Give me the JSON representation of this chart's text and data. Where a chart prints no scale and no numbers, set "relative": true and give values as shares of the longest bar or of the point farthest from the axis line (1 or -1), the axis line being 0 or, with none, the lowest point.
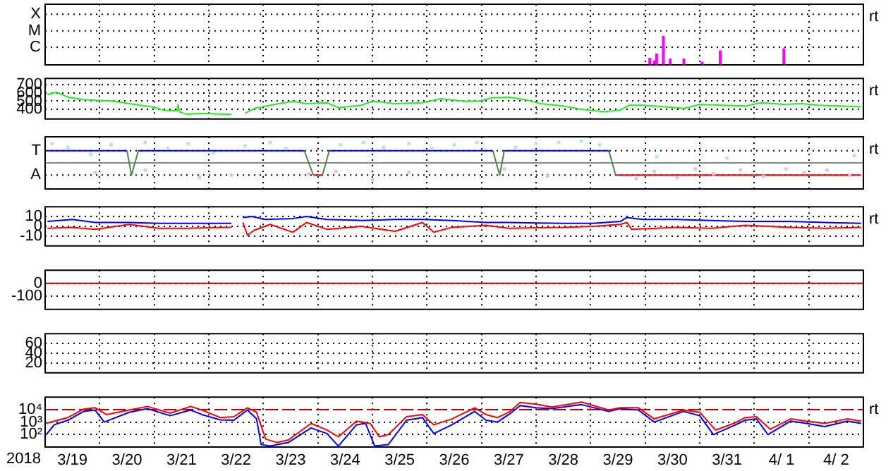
{
  "chart_data": [
    {
      "type": "bar",
      "relative": true,
      "xlim": [
        "2018-03-19",
        "2018-04-03"
      ],
      "grid": "x",
      "tick_labels": false,
      "legend": false,
      "xticks": [
        {
          "value": "2018-03-20",
          "label": null
        },
        {
          "value": "2018-03-21",
          "label": null
        },
        {
          "value": "2018-03-22",
          "label": null
        },
        {
          "value": "2018-03-23",
          "label": null
        },
        {
          "value": "2018-03-24",
          "label": null
        },
        {
          "value": "2018-03-25",
          "label": null
        },
        {
          "value": "2018-03-26",
          "label": null
        },
        {
          "value": "2018-03-27",
          "label": null
        },
        {
          "value": "2018-03-28",
          "label": null
        },
        {
          "value": "2018-03-29",
          "label": null
        },
        {
          "value": "2018-03-30",
          "label": null
        },
        {
          "value": "2018-03-31",
          "label": null
        },
        {
          "value": "2018-04-01",
          "label": null
        },
        {
          "value": "2018-04-02",
          "label": null
        }
      ],
      "ref_lines": [
        {
          "axis": "y",
          "value": 1.74,
          "label": "X",
          "color": "#000000",
          "line_style": "dotted"
        },
        {
          "axis": "y",
          "value": 1.17,
          "label": "M",
          "color": "#000000",
          "line_style": "dotted"
        },
        {
          "axis": "y",
          "value": 0.61,
          "label": "C",
          "color": "#000000",
          "line_style": "dotted"
        }
      ],
      "x": [
        "2018-03-30T02:00",
        "2018-03-30T04:00",
        "2018-03-30T05:00",
        "2018-03-30T08:00",
        "2018-03-30T11:00",
        "2018-03-30T17:00",
        "2018-03-31T01:00",
        "2018-03-31T09:00",
        "2018-03-31T16:00",
        "2018-04-01T13:00"
      ],
      "values": [
        0.24,
        0.15,
        0.39,
        1,
        0.22,
        0.22,
        0.11,
        0.5,
        null,
        0.57
      ],
      "color": "#ff00ff",
      "annotations": [
        "rt"
      ]
    },
    {
      "type": "line",
      "xlim": [
        "2018-03-19",
        "2018-04-03"
      ],
      "ylim": [
        280,
        780
      ],
      "yticks": [
        400,
        500,
        600,
        700
      ],
      "grid": true,
      "tick_labels": "y",
      "legend": false,
      "xticks": [
        {
          "value": "2018-03-20",
          "label": null
        },
        {
          "value": "2018-03-21",
          "label": null
        },
        {
          "value": "2018-03-22",
          "label": null
        },
        {
          "value": "2018-03-23",
          "label": null
        },
        {
          "value": "2018-03-24",
          "label": null
        },
        {
          "value": "2018-03-25",
          "label": null
        },
        {
          "value": "2018-03-26",
          "label": null
        },
        {
          "value": "2018-03-27",
          "label": null
        },
        {
          "value": "2018-03-28",
          "label": null
        },
        {
          "value": "2018-03-29",
          "label": null
        },
        {
          "value": "2018-03-30",
          "label": null
        },
        {
          "value": "2018-03-31",
          "label": null
        },
        {
          "value": "2018-04-01",
          "label": null
        },
        {
          "value": "2018-04-02",
          "label": null
        }
      ],
      "series": [
        {
          "color": "#22ee22",
          "x": [
            "2018-03-19T01:00",
            "2018-03-19T05:00",
            "2018-03-19T10:00",
            "2018-03-19T17:00",
            "2018-03-20T06:00",
            "2018-03-20T18:00",
            "2018-03-20T23:00",
            "2018-03-21T04:00",
            "2018-03-21T10:00",
            "2018-03-21T10:30",
            "2018-03-21T11:00",
            "2018-03-21T14:00",
            "2018-03-21T21:00",
            "2018-03-22T07:00",
            "2018-03-22T10:00",
            "2018-03-22T13:00",
            "2018-03-22T16:00",
            "2018-03-22T20:00",
            "2018-03-23T03:00",
            "2018-03-23T13:00",
            "2018-03-23T19:00",
            "2018-03-24T04:00",
            "2018-03-24T09:00",
            "2018-03-24T19:00",
            "2018-03-25T00:00",
            "2018-03-25T10:00",
            "2018-03-25T22:00",
            "2018-03-26T06:00",
            "2018-03-26T16:00",
            "2018-03-26T23:00",
            "2018-03-27T04:00",
            "2018-03-27T12:00",
            "2018-03-27T19:00",
            "2018-03-28T02:00",
            "2018-03-28T12:00",
            "2018-03-28T20:00",
            "2018-03-29T06:00",
            "2018-03-29T13:00",
            "2018-03-29T17:00",
            "2018-03-29T23:00",
            "2018-03-30T09:00",
            "2018-03-30T17:00",
            "2018-03-31T00:00",
            "2018-03-31T10:00",
            "2018-03-31T20:00",
            "2018-04-01T03:00",
            "2018-04-01T13:00",
            "2018-04-01T21:00",
            "2018-04-02T04:00",
            "2018-04-02T14:00",
            "2018-04-02T23:00"
          ],
          "values": [
            580,
            610,
            550,
            520,
            500,
            450,
            430,
            390,
            380,
            460,
            370,
            340,
            350,
            340,
            340,
            null,
            350,
            410,
            450,
            500,
            470,
            480,
            420,
            450,
            500,
            470,
            480,
            530,
            500,
            500,
            540,
            550,
            520,
            470,
            440,
            400,
            370,
            390,
            450,
            450,
            430,
            410,
            460,
            450,
            440,
            480,
            460,
            470,
            450,
            440,
            430
          ]
        }
      ],
      "annotations": [
        "rt"
      ]
    },
    {
      "type": "line",
      "relative": true,
      "xlim": [
        "2018-03-19",
        "2018-04-03"
      ],
      "grid": "x",
      "tick_labels": false,
      "legend": false,
      "xticks": [
        {
          "value": "2018-03-20",
          "label": null
        },
        {
          "value": "2018-03-21",
          "label": null
        },
        {
          "value": "2018-03-22",
          "label": null
        },
        {
          "value": "2018-03-23",
          "label": null
        },
        {
          "value": "2018-03-24",
          "label": null
        },
        {
          "value": "2018-03-25",
          "label": null
        },
        {
          "value": "2018-03-26",
          "label": null
        },
        {
          "value": "2018-03-27",
          "label": null
        },
        {
          "value": "2018-03-28",
          "label": null
        },
        {
          "value": "2018-03-29",
          "label": null
        },
        {
          "value": "2018-03-30",
          "label": null
        },
        {
          "value": "2018-03-31",
          "label": null
        },
        {
          "value": "2018-04-01",
          "label": null
        },
        {
          "value": "2018-04-02",
          "label": null
        }
      ],
      "ref_lines": [
        {
          "axis": "y",
          "value": 0.56,
          "label": "T",
          "color": "#000000",
          "line_style": "dotted"
        },
        {
          "axis": "y",
          "value": 0,
          "color": "#888888"
        },
        {
          "axis": "y",
          "value": -0.56,
          "label": "A",
          "color": "#000000",
          "line_style": "dotted"
        }
      ],
      "series": [
        {
          "type": "scatter",
          "marker": "square",
          "color": "#a8e4f4",
          "x": [
            "2018-03-19T03:00",
            "2018-03-19T10:00",
            "2018-03-19T20:00",
            "2018-03-20T05:00",
            "2018-03-20T20:00",
            "2018-03-21T06:00",
            "2018-03-21T15:00",
            "2018-03-22T02:00",
            "2018-03-22T16:00",
            "2018-03-23T03:00",
            "2018-03-23T10:00",
            "2018-03-24T10:00",
            "2018-03-24T20:00",
            "2018-03-25T05:00",
            "2018-03-25T16:00",
            "2018-03-26T02:00",
            "2018-03-26T12:00",
            "2018-03-26T22:00",
            "2018-03-27T15:00",
            "2018-03-28T00:00",
            "2018-03-28T10:00",
            "2018-03-28T20:00",
            "2018-03-29T04:00",
            "2018-03-30T05:00",
            "2018-03-31T12:00",
            "2018-04-02T20:00"
          ],
          "values": [
            0.89,
            0.72,
            0.39,
            0.83,
            0.94,
            0.67,
            0.89,
            0.44,
            0.78,
            0.94,
            0.67,
            0.83,
            0.94,
            0.72,
            0.89,
            0.67,
            0.83,
            0.94,
            0.72,
            0.89,
            0.94,
            1,
            0.83,
            0.28,
            0.22,
            0.33
          ]
        },
        {
          "type": "scatter",
          "marker": "square",
          "color": "#f4b4f4",
          "x": [
            "2018-03-19T22:00",
            "2018-03-20T20:00",
            "2018-03-21T20:00",
            "2018-03-22T10:00",
            "2018-03-23T20:00",
            "2018-03-24T08:00",
            "2018-03-25T00:00",
            "2018-03-25T16:00",
            "2018-03-27T10:00",
            "2018-03-28T05:00",
            "2018-03-29T20:00",
            "2018-03-30T04:00",
            "2018-03-30T14:00",
            "2018-03-30T22:00",
            "2018-03-31T06:00",
            "2018-03-31T18:00",
            "2018-04-01T04:00",
            "2018-04-01T14:00",
            "2018-04-01T22:00",
            "2018-04-02T08:00",
            "2018-04-02T18:00"
          ],
          "values": [
            -0.44,
            -0.33,
            -0.67,
            -0.56,
            -0.5,
            -0.39,
            -0.78,
            -0.44,
            -0.28,
            -0.61,
            -0.72,
            -0.39,
            -0.67,
            -0.28,
            -0.5,
            -0.33,
            -0.61,
            -0.28,
            -0.44,
            -0.33,
            -0.56
          ]
        },
        {
          "type": "line",
          "color": "#0000ff",
          "x": [
            "2018-03-19T00:00",
            "2018-03-20T12:00",
            "2018-03-20T14:00",
            "2018-03-20T17:00",
            "2018-03-23T18:00",
            "2018-03-24T00:00",
            "2018-03-24T05:00",
            "2018-03-27T05:00",
            "2018-03-27T08:00",
            "2018-03-27T10:00",
            "2018-03-29T08:00"
          ],
          "values": [
            0.56,
            0.56,
            null,
            0.56,
            0.56,
            null,
            0.56,
            0.56,
            null,
            0.56,
            0.56
          ]
        },
        {
          "type": "line",
          "color": "#4a8a4a",
          "x": [
            "2018-03-20T12:00",
            "2018-03-20T14:00",
            "2018-03-20T17:00",
            "2018-03-22T00:00",
            "2018-03-23T18:00",
            "2018-03-23T22:00",
            "2018-03-24T00:00",
            "2018-03-24T02:00",
            "2018-03-24T05:00",
            "2018-03-26T00:00",
            "2018-03-27T05:00",
            "2018-03-27T08:00",
            "2018-03-27T10:00",
            "2018-03-28T00:00",
            "2018-03-29T08:00",
            "2018-03-29T11:00"
          ],
          "values": [
            0.56,
            -0.56,
            0.56,
            null,
            0.56,
            -0.56,
            null,
            -0.56,
            0.56,
            null,
            0.56,
            -0.56,
            0.56,
            null,
            0.56,
            -0.56
          ]
        },
        {
          "type": "line",
          "color": "#ff0000",
          "x": [
            "2018-03-23T22:00",
            "2018-03-24T02:00",
            "2018-03-26T00:00",
            "2018-03-29T11:00",
            "2018-04-02T23:00"
          ],
          "values": [
            -0.56,
            -0.56,
            null,
            -0.56,
            -0.56
          ]
        }
      ],
      "annotations": [
        "rt"
      ]
    },
    {
      "type": "line",
      "xlim": [
        "2018-03-19",
        "2018-04-03"
      ],
      "ylim": [
        -20,
        20
      ],
      "yticks": [
        10,
        0,
        -10
      ],
      "grid": true,
      "tick_labels": "y",
      "legend": false,
      "xticks": [
        {
          "value": "2018-03-20",
          "label": null
        },
        {
          "value": "2018-03-21",
          "label": null
        },
        {
          "value": "2018-03-22",
          "label": null
        },
        {
          "value": "2018-03-23",
          "label": null
        },
        {
          "value": "2018-03-24",
          "label": null
        },
        {
          "value": "2018-03-25",
          "label": null
        },
        {
          "value": "2018-03-26",
          "label": null
        },
        {
          "value": "2018-03-27",
          "label": null
        },
        {
          "value": "2018-03-28",
          "label": null
        },
        {
          "value": "2018-03-29",
          "label": null
        },
        {
          "value": "2018-03-30",
          "label": null
        },
        {
          "value": "2018-03-31",
          "label": null
        },
        {
          "value": "2018-04-01",
          "label": null
        },
        {
          "value": "2018-04-02",
          "label": null
        }
      ],
      "series": [
        {
          "color": "#0000ff",
          "x": [
            "2018-03-19T01:00",
            "2018-03-19T12:00",
            "2018-03-19T22:00",
            "2018-03-20T13:00",
            "2018-03-21T02:00",
            "2018-03-21T14:00",
            "2018-03-22T07:00",
            "2018-03-22T10:00",
            "2018-03-22T13:00",
            "2018-03-22T15:00",
            "2018-03-22T19:00",
            "2018-03-23T01:00",
            "2018-03-23T13:00",
            "2018-03-23T19:00",
            "2018-03-24T04:00",
            "2018-03-24T19:00",
            "2018-03-25T10:00",
            "2018-03-25T22:00",
            "2018-03-26T11:00",
            "2018-03-27T02:00",
            "2018-03-27T12:00",
            "2018-03-28T12:00",
            "2018-03-29T01:00",
            "2018-03-29T13:00",
            "2018-03-29T16:00",
            "2018-03-29T23:00",
            "2018-03-30T14:00",
            "2018-03-31T05:00",
            "2018-03-31T20:00",
            "2018-04-01T16:00",
            "2018-04-02T07:00",
            "2018-04-02T23:00"
          ],
          "values": [
            5,
            7,
            4,
            4,
            3,
            3,
            3,
            3,
            null,
            9,
            10,
            7,
            8,
            10,
            7,
            6,
            7,
            7,
            6,
            4,
            4,
            3,
            3,
            5,
            9,
            7,
            7,
            6,
            5,
            5,
            4,
            3
          ]
        },
        {
          "color": "#ff0000",
          "x": [
            "2018-03-19T01:00",
            "2018-03-19T12:00",
            "2018-03-19T22:00",
            "2018-03-20T13:00",
            "2018-03-21T02:00",
            "2018-03-21T14:00",
            "2018-03-22T07:00",
            "2018-03-22T10:00",
            "2018-03-22T13:00",
            "2018-03-22T15:00",
            "2018-03-22T17:00",
            "2018-03-22T20:00",
            "2018-03-23T03:00",
            "2018-03-23T13:00",
            "2018-03-23T19:00",
            "2018-03-24T04:00",
            "2018-03-24T19:00",
            "2018-03-25T10:00",
            "2018-03-25T22:00",
            "2018-03-26T03:00",
            "2018-03-26T11:00",
            "2018-03-27T02:00",
            "2018-03-27T12:00",
            "2018-03-28T12:00",
            "2018-03-29T01:00",
            "2018-03-29T13:00",
            "2018-03-29T16:00",
            "2018-03-29T18:00",
            "2018-03-30T14:00",
            "2018-03-31T05:00",
            "2018-03-31T20:00",
            "2018-04-01T16:00",
            "2018-04-02T07:00",
            "2018-04-02T23:00"
          ],
          "values": [
            -2,
            -1,
            -3,
            2,
            -2,
            -2,
            -1,
            -1,
            null,
            4,
            -9,
            -4,
            2,
            -6,
            4,
            -3,
            0,
            -5,
            4,
            -6,
            -1,
            1,
            -2,
            -1,
            0,
            2,
            4,
            -3,
            -1,
            -2,
            1,
            -1,
            -2,
            -1
          ]
        }
      ],
      "annotations": [
        "rt"
      ]
    },
    {
      "type": "line",
      "xlim": [
        "2018-03-19",
        "2018-04-03"
      ],
      "ylim": [
        -200,
        100
      ],
      "yticks": [
        0,
        -100
      ],
      "grid": true,
      "tick_labels": "y",
      "legend": false,
      "xticks": [
        {
          "value": "2018-03-20",
          "label": null
        },
        {
          "value": "2018-03-21",
          "label": null
        },
        {
          "value": "2018-03-22",
          "label": null
        },
        {
          "value": "2018-03-23",
          "label": null
        },
        {
          "value": "2018-03-24",
          "label": null
        },
        {
          "value": "2018-03-25",
          "label": null
        },
        {
          "value": "2018-03-26",
          "label": null
        },
        {
          "value": "2018-03-27",
          "label": null
        },
        {
          "value": "2018-03-28",
          "label": null
        },
        {
          "value": "2018-03-29",
          "label": null
        },
        {
          "value": "2018-03-30",
          "label": null
        },
        {
          "value": "2018-03-31",
          "label": null
        },
        {
          "value": "2018-04-01",
          "label": null
        },
        {
          "value": "2018-04-02",
          "label": null
        }
      ],
      "ref_lines": [
        {
          "axis": "y",
          "value": 0,
          "color": "#cc0000"
        }
      ]
    },
    {
      "type": "line",
      "xlim": [
        "2018-03-19",
        "2018-04-03"
      ],
      "ylim": [
        0,
        80
      ],
      "yticks": [
        20,
        40,
        60
      ],
      "grid": true,
      "tick_labels": "y",
      "legend": false,
      "xticks": [
        {
          "value": "2018-03-20",
          "label": null
        },
        {
          "value": "2018-03-21",
          "label": null
        },
        {
          "value": "2018-03-22",
          "label": null
        },
        {
          "value": "2018-03-23",
          "label": null
        },
        {
          "value": "2018-03-24",
          "label": null
        },
        {
          "value": "2018-03-25",
          "label": null
        },
        {
          "value": "2018-03-26",
          "label": null
        },
        {
          "value": "2018-03-27",
          "label": null
        },
        {
          "value": "2018-03-28",
          "label": null
        },
        {
          "value": "2018-03-29",
          "label": null
        },
        {
          "value": "2018-03-30",
          "label": null
        },
        {
          "value": "2018-03-31",
          "label": null
        },
        {
          "value": "2018-04-01",
          "label": null
        },
        {
          "value": "2018-04-02",
          "label": null
        }
      ]
    },
    {
      "type": "line",
      "xlim": [
        "2018-03-19",
        "2018-04-03"
      ],
      "ylim": [
        10,
        100000
      ],
      "log": true,
      "yticks": [
        {
          "value": 10000,
          "label": "10⁴"
        },
        {
          "value": 1000,
          "label": "10³"
        },
        {
          "value": 100,
          "label": "10²"
        }
      ],
      "grid": true,
      "legend": false,
      "xticks": [
        {
          "value": "2018-03-19T12:00",
          "label": "3/19"
        },
        {
          "value": "2018-03-20",
          "label": null
        },
        {
          "value": "2018-03-20T12:00",
          "label": "3/20"
        },
        {
          "value": "2018-03-21",
          "label": null
        },
        {
          "value": "2018-03-21T12:00",
          "label": "3/21"
        },
        {
          "value": "2018-03-22",
          "label": null
        },
        {
          "value": "2018-03-22T12:00",
          "label": "3/22"
        },
        {
          "value": "2018-03-23",
          "label": null
        },
        {
          "value": "2018-03-23T12:00",
          "label": "3/23"
        },
        {
          "value": "2018-03-24",
          "label": null
        },
        {
          "value": "2018-03-24T12:00",
          "label": "3/24"
        },
        {
          "value": "2018-03-25",
          "label": null
        },
        {
          "value": "2018-03-25T12:00",
          "label": "3/25"
        },
        {
          "value": "2018-03-26",
          "label": null
        },
        {
          "value": "2018-03-26T12:00",
          "label": "3/26"
        },
        {
          "value": "2018-03-27",
          "label": null
        },
        {
          "value": "2018-03-27T12:00",
          "label": "3/27"
        },
        {
          "value": "2018-03-28",
          "label": null
        },
        {
          "value": "2018-03-28T12:00",
          "label": "3/28"
        },
        {
          "value": "2018-03-29",
          "label": null
        },
        {
          "value": "2018-03-29T12:00",
          "label": "3/29"
        },
        {
          "value": "2018-03-30",
          "label": null
        },
        {
          "value": "2018-03-30T12:00",
          "label": "3/30"
        },
        {
          "value": "2018-03-31",
          "label": null
        },
        {
          "value": "2018-03-31T12:00",
          "label": "3/31"
        },
        {
          "value": "2018-04-01",
          "label": null
        },
        {
          "value": "2018-04-01T12:00",
          "label": "4/ 1"
        },
        {
          "value": "2018-04-02",
          "label": null
        },
        {
          "value": "2018-04-02T12:00",
          "label": "4/ 2"
        }
      ],
      "ref_lines": [
        {
          "axis": "y",
          "value": 10000,
          "color": "#cc0000",
          "line_style": "dashed"
        }
      ],
      "series": [
        {
          "color": "#ff0000",
          "x": [
            "2018-03-19T00:30",
            "2018-03-19T04:00",
            "2018-03-19T10:00",
            "2018-03-19T17:00",
            "2018-03-19T22:00",
            "2018-03-20T03:00",
            "2018-03-20T13:00",
            "2018-03-20T21:00",
            "2018-03-21T07:00",
            "2018-03-21T16:00",
            "2018-03-21T21:00",
            "2018-03-22T05:00",
            "2018-03-22T11:00",
            "2018-03-22T17:00",
            "2018-03-22T21:00",
            "2018-03-23T01:00",
            "2018-03-23T06:00",
            "2018-03-23T11:00",
            "2018-03-23T21:00",
            "2018-03-24T04:00",
            "2018-03-24T09:00",
            "2018-03-24T17:00",
            "2018-03-24T23:00",
            "2018-03-25T03:00",
            "2018-03-25T07:00",
            "2018-03-25T15:00",
            "2018-03-25T22:00",
            "2018-03-26T03:00",
            "2018-03-26T11:00",
            "2018-03-26T21:00",
            "2018-03-27T02:00",
            "2018-03-27T07:00",
            "2018-03-27T12:00",
            "2018-03-27T17:00",
            "2018-03-28T00:00",
            "2018-03-28T07:00",
            "2018-03-28T20:00",
            "2018-03-29T08:00",
            "2018-03-29T13:00",
            "2018-03-29T21:00",
            "2018-03-30T04:00",
            "2018-03-30T17:00",
            "2018-03-31T00:00",
            "2018-03-31T07:00",
            "2018-03-31T15:00",
            "2018-03-31T20:00",
            "2018-04-01T01:00",
            "2018-04-01T07:00",
            "2018-04-01T16:00",
            "2018-04-01T23:00",
            "2018-04-02T07:00",
            "2018-04-02T17:00",
            "2018-04-02T23:00"
          ],
          "values": [
            780,
            1200,
            2300,
            11000,
            14000,
            4000,
            9200,
            18000,
            5200,
            18000,
            9200,
            2300,
            2700,
            14000,
            6100,
            44,
            23,
            37,
            780,
            230,
            66,
            1200,
            780,
            66,
            100,
            2700,
            4000,
            610,
            1800,
            14000,
            4000,
            2300,
            6100,
            37000,
            27000,
            16000,
            40000,
            9200,
            14000,
            14000,
            1800,
            9200,
            6100,
            230,
            780,
            2300,
            2700,
            270,
            1800,
            1200,
            780,
            1800,
            1200
          ]
        },
        {
          "color": "#0000ff",
          "x": [
            "2018-03-19T00:30",
            "2018-03-19T04:00",
            "2018-03-19T10:00",
            "2018-03-19T17:00",
            "2018-03-19T22:00",
            "2018-03-20T02:00",
            "2018-03-20T13:00",
            "2018-03-20T21:00",
            "2018-03-21T07:00",
            "2018-03-21T16:00",
            "2018-03-21T21:00",
            "2018-03-22T05:00",
            "2018-03-22T11:00",
            "2018-03-22T17:00",
            "2018-03-22T21:00",
            "2018-03-22T23:00",
            "2018-03-23T03:00",
            "2018-03-23T11:00",
            "2018-03-23T21:00",
            "2018-03-24T04:00",
            "2018-03-24T09:00",
            "2018-03-24T17:00",
            "2018-03-24T21:00",
            "2018-03-25T01:00",
            "2018-03-25T07:00",
            "2018-03-25T15:00",
            "2018-03-25T22:00",
            "2018-03-26T03:00",
            "2018-03-26T11:00",
            "2018-03-26T21:00",
            "2018-03-27T02:00",
            "2018-03-27T07:00",
            "2018-03-27T12:00",
            "2018-03-27T17:00",
            "2018-03-28T00:00",
            "2018-03-28T07:00",
            "2018-03-28T20:00",
            "2018-03-29T08:00",
            "2018-03-29T13:00",
            "2018-03-29T21:00",
            "2018-03-30T04:00",
            "2018-03-30T17:00",
            "2018-03-31T00:00",
            "2018-03-31T06:00",
            "2018-03-31T15:00",
            "2018-03-31T20:00",
            "2018-04-01T01:00",
            "2018-04-01T06:00",
            "2018-04-01T16:00",
            "2018-04-01T23:00",
            "2018-04-02T07:00",
            "2018-04-02T17:00",
            "2018-04-02T23:00"
          ],
          "values": [
            100,
            610,
            1400,
            7200,
            9200,
            1000,
            6100,
            12000,
            3200,
            9200,
            4000,
            1500,
            1400,
            9200,
            1800,
            16,
            12,
            23,
            340,
            120,
            12,
            610,
            780,
            12,
            16,
            1400,
            2300,
            120,
            610,
            7200,
            1400,
            1000,
            4000,
            21000,
            14000,
            12000,
            25000,
            7200,
            12000,
            9200,
            1000,
            7200,
            3200,
            100,
            520,
            1400,
            1800,
            100,
            1200,
            780,
            440,
            1200,
            780
          ]
        }
      ],
      "xlabel": "2018",
      "annotations": [
        "rt"
      ]
    }
  ]
}
